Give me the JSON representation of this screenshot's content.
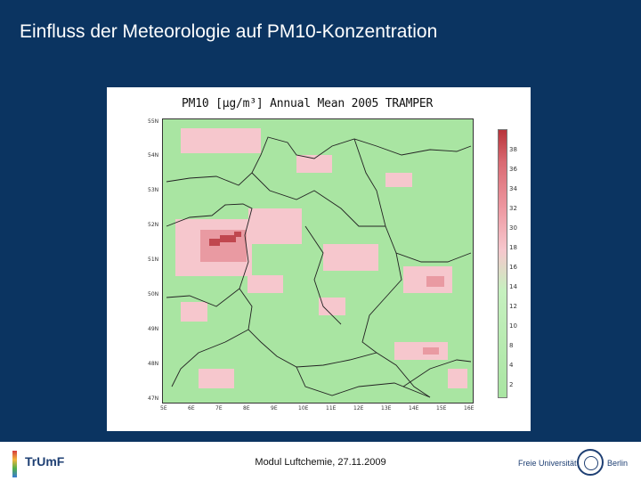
{
  "slide": {
    "title": "Einfluss der Meteorologie auf  PM10-Konzentration",
    "footer": "Modul Luftchemie, 27.11.2009"
  },
  "figure": {
    "title": "PM10 [μg/m³] Annual Mean 2005 TRAMPER",
    "y_ticks": [
      "55N",
      "54N",
      "53N",
      "52N",
      "51N",
      "50N",
      "49N",
      "48N",
      "47N"
    ],
    "x_ticks": [
      "5E",
      "6E",
      "7E",
      "8E",
      "9E",
      "10E",
      "11E",
      "12E",
      "13E",
      "14E",
      "15E",
      "16E"
    ],
    "colorbar_ticks": [
      "38",
      "36",
      "34",
      "32",
      "30",
      "18",
      "16",
      "14",
      "12",
      "10",
      "8",
      "4",
      "2"
    ],
    "colors": {
      "low": "#a9e5a2",
      "mid": "#f6c7cd",
      "high": "#e68a91",
      "max": "#b8333a"
    }
  },
  "logos": {
    "left": "TrUmF",
    "right_prefix": "Freie Universität",
    "right_suffix": "Berlin"
  }
}
